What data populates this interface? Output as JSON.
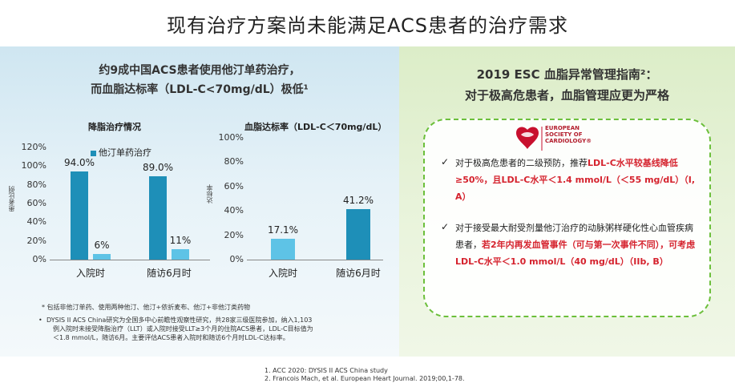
{
  "title": "现有治疗方案尚未能满足ACS患者的治疗需求",
  "left": {
    "heading_line1": "约9成中国ACS患者使用他汀单药治疗，",
    "heading_line2": "而血脂达标率（LDL-C<70mg/dL）极低¹",
    "chart1": {
      "title": "降脂治疗情况",
      "axis_title": "患者比例",
      "legend": "他汀单药治疗"
    },
    "chart2": {
      "title": "血脂达标率（LDL-C＜70mg/dL）",
      "axis_title": "达标率"
    },
    "note1": "* 包括非他汀单药、使用两种他汀、他汀+依折麦布、他汀+非他汀类药物",
    "note2_line1": "DYSIS II ACS China研究为全国多中心前瞻性观察性研究，共28家三级医院参加，纳入1,103",
    "note2_line2": "例入院时未接受降脂治疗（LLT）或入院时接受LLT≥3个月的住院ACS患者，LDL-C目标值为",
    "note2_line3": "＜1.8 mmol/L，随访6月。主要评估ACS患者入院时和随访6个月时LDL-C达标率。",
    "bullet_mark": "•"
  },
  "right": {
    "heading_line1": "2019 ESC 血脂异常管理指南²：",
    "heading_line2": "对于极高危患者，血脂管理应更为严格",
    "logo_line1": "EUROPEAN",
    "logo_line2": "SOCIETY OF",
    "logo_line3": "CARDIOLOGY®",
    "check": "✓",
    "b1_a": "对于极高危患者的二级预防，推荐",
    "b1_b": "LDL-C水平较基线降低≥50%，且LDL-C水平＜1.4 mmol/L（＜55 mg/dL）（I, A）",
    "b2_a": "对于接受最大耐受剂量他汀治疗的动脉粥样硬化性心血管疾病患者，",
    "b2_b": "若2年内再发血管事件（可与第一次事件不同），可考虑LDL-C水平＜1.0 mmol/L（40 mg/dL）（IIb, B）"
  },
  "refs": {
    "r1": "1. ACC 2020: DYSIS II ACS China study",
    "r2": "2. Francois Mach, et al. European Heart Journal. 2019;00,1-78."
  },
  "colors": {
    "bar_dark": "#1e8fb8",
    "bar_light": "#5ec3e6",
    "dash": "#6cbf3b",
    "accent_red": "#d5232e"
  },
  "chart_data": [
    {
      "type": "bar",
      "title": "降脂治疗情况",
      "ylabel": "患者比例",
      "categories": [
        "入院时",
        "随访6月时"
      ],
      "series": [
        {
          "name": "他汀单药治疗",
          "values": [
            94.0,
            89.0
          ],
          "labels": [
            "94.0%",
            "89.0%"
          ]
        },
        {
          "values": [
            6,
            11
          ],
          "labels": [
            "6%",
            "11%"
          ]
        }
      ],
      "yticks": [
        "120%",
        "100%",
        "80%",
        "60%",
        "40%",
        "20%",
        "0%"
      ],
      "ylim": [
        0,
        120
      ]
    },
    {
      "type": "bar",
      "title": "血脂达标率（LDL-C＜70mg/dL）",
      "ylabel": "达标率",
      "categories": [
        "入院时",
        "随访6月时"
      ],
      "series": [
        {
          "values": [
            17.1,
            41.2
          ],
          "labels": [
            "17.1%",
            "41.2%"
          ]
        }
      ],
      "yticks": [
        "100%",
        "80%",
        "60%",
        "40%",
        "20%",
        "0%"
      ],
      "ylim": [
        0,
        100
      ]
    }
  ]
}
